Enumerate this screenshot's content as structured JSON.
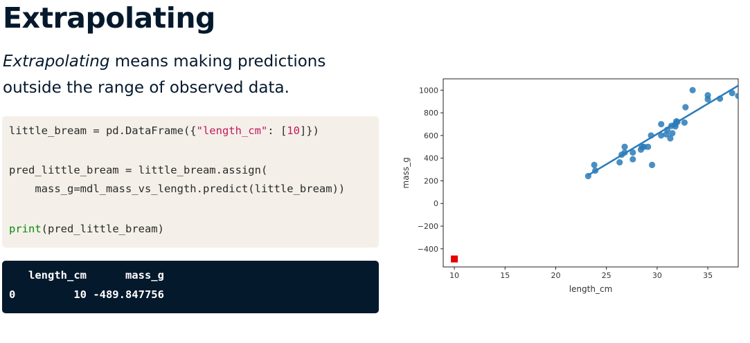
{
  "slide": {
    "title": "Extrapolating",
    "intro_emph": "Extrapolating",
    "intro_rest": " means making predictions outside the range of observed data."
  },
  "code": {
    "line1_a": "little_bream = pd.DataFrame({",
    "line1_str": "\"length_cm\"",
    "line1_b": ": [",
    "line1_num": "10",
    "line1_c": "]})",
    "line2": "pred_little_bream = little_bream.assign(",
    "line3": "    mass_g=mdl_mass_vs_length.predict(little_bream))",
    "line4_kw": "print",
    "line4_rest": "(pred_little_bream)"
  },
  "output": {
    "header": "   length_cm      mass_g",
    "row": "0         10 -489.847756"
  },
  "chart_data": {
    "type": "scatter",
    "xlabel": "length_cm",
    "ylabel": "mass_g",
    "xlim": [
      8.9,
      38
    ],
    "ylim": [
      -560,
      1100
    ],
    "xticks": [
      10,
      15,
      20,
      25,
      30,
      35
    ],
    "yticks": [
      -400,
      -200,
      0,
      200,
      400,
      600,
      800,
      1000
    ],
    "points_color": "#2a7bba",
    "line_color": "#2a7bba",
    "prediction_color": "#e60000",
    "points": [
      [
        23.2,
        242
      ],
      [
        23.9,
        290
      ],
      [
        23.8,
        340
      ],
      [
        26.3,
        363
      ],
      [
        26.5,
        430
      ],
      [
        26.8,
        450
      ],
      [
        26.8,
        500
      ],
      [
        27.6,
        390
      ],
      [
        27.6,
        450
      ],
      [
        28.5,
        500
      ],
      [
        28.4,
        475
      ],
      [
        28.7,
        500
      ],
      [
        29.1,
        500
      ],
      [
        29.5,
        340
      ],
      [
        29.4,
        600
      ],
      [
        30.4,
        600
      ],
      [
        30.4,
        700
      ],
      [
        30.9,
        610
      ],
      [
        31.0,
        650
      ],
      [
        31.3,
        575
      ],
      [
        31.4,
        685
      ],
      [
        31.5,
        620
      ],
      [
        31.8,
        680
      ],
      [
        31.8,
        700
      ],
      [
        31.9,
        725
      ],
      [
        32.0,
        720
      ],
      [
        32.7,
        714
      ],
      [
        32.8,
        850
      ],
      [
        33.5,
        1000
      ],
      [
        35.0,
        920
      ],
      [
        35.0,
        955
      ],
      [
        36.2,
        925
      ],
      [
        37.4,
        975
      ],
      [
        38.0,
        950
      ]
    ],
    "regression_line": [
      [
        23.2,
        250
      ],
      [
        38.0,
        1040
      ]
    ],
    "prediction_point": [
      10,
      -489.847756
    ]
  }
}
